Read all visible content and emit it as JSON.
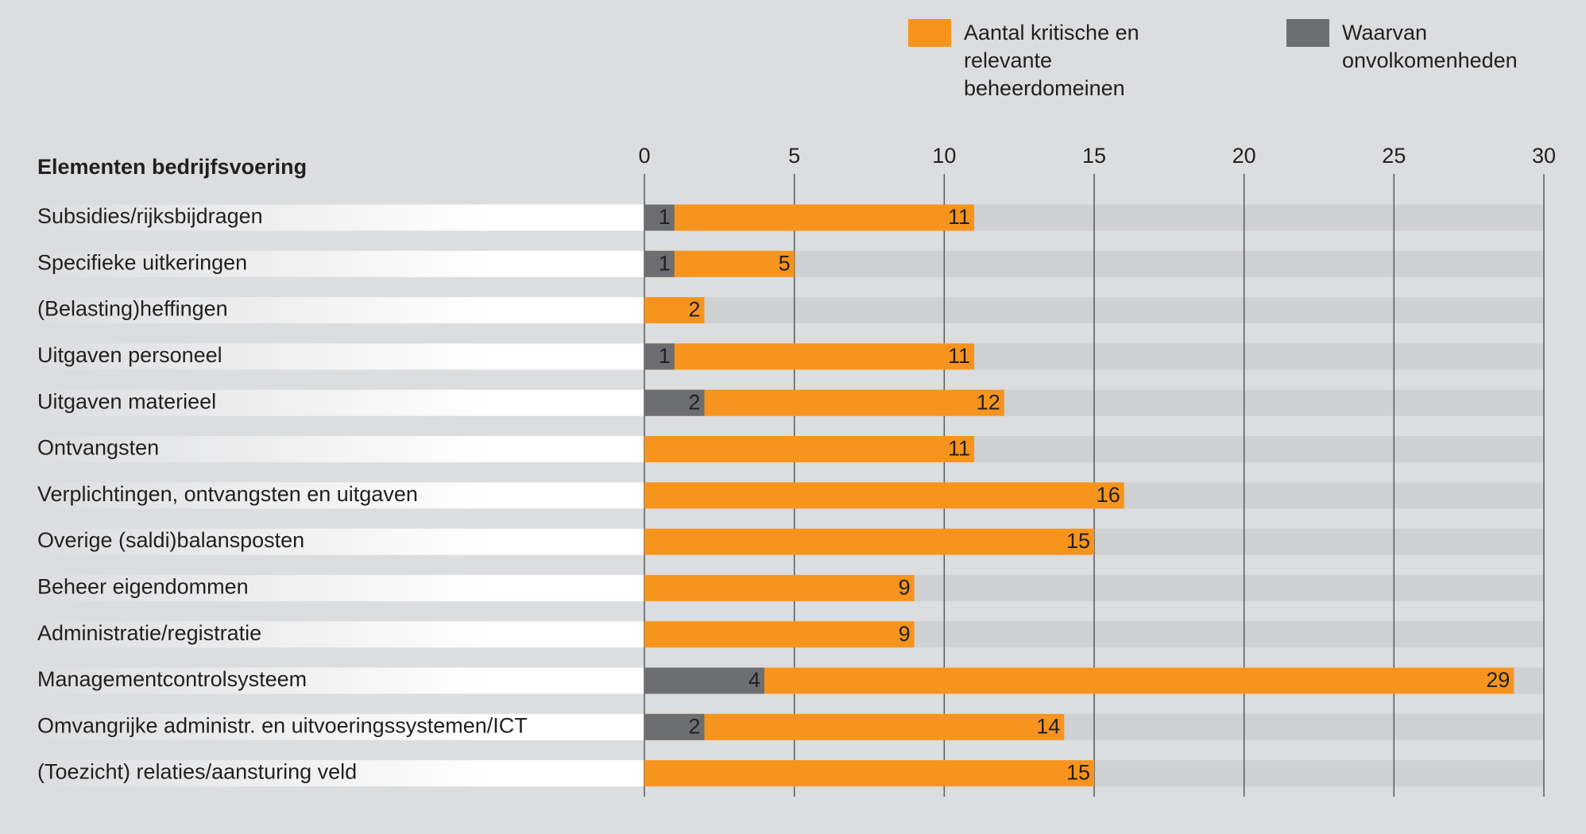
{
  "chart_data": {
    "type": "bar",
    "orientation": "horizontal",
    "overlap": true,
    "category_header": "Elementen bedrijfsvoering",
    "categories": [
      "Subsidies/rijksbijdragen",
      "Specifieke uitkeringen",
      "(Belasting)heffingen",
      "Uitgaven personeel",
      "Uitgaven materieel",
      "Ontvangsten",
      "Verplichtingen, ontvangsten en uitgaven",
      "Overige (saldi)balansposten",
      "Beheer eigendommen",
      "Administratie/registratie",
      "Managementcontrolsysteem",
      "Omvangrijke administr. en uitvoeringssystemen/ICT",
      "(Toezicht) relaties/aansturing veld"
    ],
    "series": [
      {
        "name": "Aantal kritische en relevante beheerdomeinen",
        "color": "#f7941d",
        "values": [
          11,
          5,
          2,
          11,
          12,
          11,
          16,
          15,
          9,
          9,
          29,
          14,
          15
        ]
      },
      {
        "name": "Waarvan onvolkomenheden",
        "color": "#6d6e71",
        "values": [
          1,
          1,
          null,
          1,
          2,
          null,
          null,
          null,
          null,
          null,
          4,
          2,
          null
        ]
      }
    ],
    "xlim": [
      0,
      30
    ],
    "xticks": [
      0,
      5,
      10,
      15,
      20,
      25,
      30
    ],
    "grid": true,
    "legend": "top-right"
  }
}
